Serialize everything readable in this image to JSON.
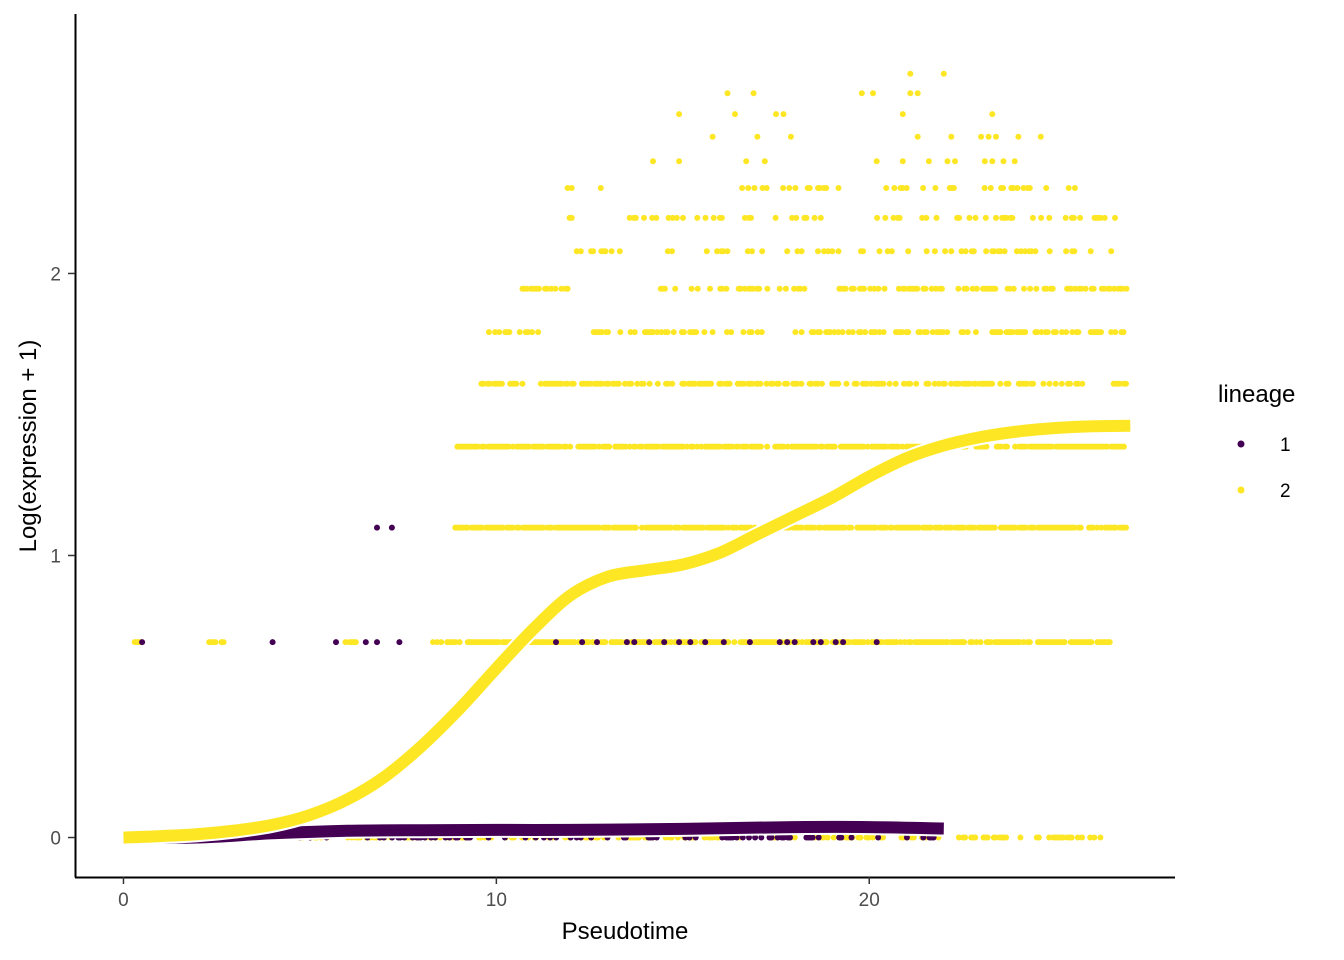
{
  "chart_data": {
    "type": "scatter",
    "title": "",
    "xlabel": "Pseudotime",
    "ylabel": "Log(expression + 1)",
    "xlim": [
      -1.3,
      28.2
    ],
    "ylim": [
      -0.14,
      2.92
    ],
    "x_ticks": [
      {
        "value": 0,
        "label": "0"
      },
      {
        "value": 10,
        "label": "10"
      },
      {
        "value": 20,
        "label": "20"
      }
    ],
    "y_ticks": [
      {
        "value": 0,
        "label": "0"
      },
      {
        "value": 1,
        "label": "1"
      },
      {
        "value": 2,
        "label": "2"
      }
    ],
    "grid": false,
    "legend": {
      "title": "lineage",
      "position": "right",
      "entries": [
        {
          "label": "1",
          "color": "#440154"
        },
        {
          "label": "2",
          "color": "#FDE725"
        }
      ]
    },
    "series": [
      {
        "name": "1",
        "color": "#440154",
        "point_groups": [
          {
            "y": 0.0,
            "x_ranges": [
              [
                0.0,
                22.0
              ]
            ],
            "density": 0.22
          },
          {
            "y": 0.693,
            "x": [
              0.5,
              4.0,
              5.7,
              6.5,
              6.8,
              7.4,
              11.6,
              12.3,
              12.7,
              13.5,
              13.7,
              14.1,
              14.5,
              14.9,
              15.2,
              15.6,
              16.1,
              16.8,
              17.6,
              17.8,
              18.0,
              18.5,
              18.7,
              19.1,
              19.3,
              20.2
            ]
          },
          {
            "y": 1.099,
            "x": [
              6.8,
              7.2
            ]
          }
        ],
        "fit": {
          "x": [
            0,
            2,
            4,
            6,
            8,
            10,
            12,
            14,
            16,
            18,
            20,
            22
          ],
          "y": [
            0.0,
            0.0,
            0.015,
            0.024,
            0.026,
            0.027,
            0.027,
            0.029,
            0.033,
            0.037,
            0.037,
            0.032
          ]
        }
      },
      {
        "name": "2",
        "color": "#FDE725",
        "point_groups": [
          {
            "y": 0.0,
            "x_ranges": [
              [
                2.0,
                26.2
              ]
            ],
            "density": 0.4
          },
          {
            "y": 0.693,
            "x_ranges": [
              [
                0.3,
                0.6
              ],
              [
                2.3,
                2.8
              ],
              [
                5.9,
                6.3
              ],
              [
                8.3,
                26.5
              ]
            ],
            "density": 0.78
          },
          {
            "y": 1.099,
            "x_ranges": [
              [
                8.9,
                26.9
              ]
            ],
            "density": 0.85
          },
          {
            "y": 1.386,
            "x_ranges": [
              [
                8.9,
                26.9
              ]
            ],
            "density": 0.8
          },
          {
            "y": 1.609,
            "x_ranges": [
              [
                9.6,
                25.8
              ],
              [
                26.5,
                26.9
              ]
            ],
            "density": 0.62
          },
          {
            "y": 1.792,
            "x_ranges": [
              [
                9.8,
                11.2
              ],
              [
                12.5,
                17.3
              ],
              [
                17.8,
                26.9
              ]
            ],
            "density": 0.44
          },
          {
            "y": 1.946,
            "x_ranges": [
              [
                10.7,
                12.0
              ],
              [
                14.3,
                18.3
              ],
              [
                19.2,
                26.9
              ]
            ],
            "density": 0.42
          },
          {
            "y": 2.079,
            "x_ranges": [
              [
                12.1,
                13.5
              ],
              [
                14.6,
                17.2
              ],
              [
                17.8,
                26.5
              ]
            ],
            "density": 0.33
          },
          {
            "y": 2.197,
            "x_ranges": [
              [
                11.8,
                12.2
              ],
              [
                13.3,
                16.1
              ],
              [
                16.5,
                19.2
              ],
              [
                20.1,
                26.9
              ]
            ],
            "density": 0.24
          },
          {
            "y": 2.303,
            "x_ranges": [
              [
                11.8,
                12.1
              ],
              [
                12.8,
                13.2
              ],
              [
                15.6,
                19.4
              ],
              [
                20.4,
                25.8
              ]
            ],
            "density": 0.22
          },
          {
            "y": 2.398,
            "x": [
              14.2,
              14.9,
              16.7,
              17.2,
              20.2,
              20.9,
              21.6,
              22.1,
              22.3,
              23.1,
              23.3,
              23.6,
              23.9
            ]
          },
          {
            "y": 2.485,
            "x": [
              15.8,
              17.0,
              17.9,
              21.3,
              22.2,
              23.0,
              23.2,
              23.4,
              24.0,
              24.6
            ]
          },
          {
            "y": 2.565,
            "x": [
              14.9,
              16.4,
              17.5,
              17.7,
              20.9,
              23.3
            ]
          },
          {
            "y": 2.639,
            "x": [
              16.2,
              16.9,
              19.8,
              20.1,
              21.1,
              21.3
            ]
          },
          {
            "y": 2.708,
            "x": [
              21.1,
              22.0
            ]
          }
        ],
        "fit": {
          "x": [
            0,
            1,
            2,
            3,
            4,
            5,
            6,
            7,
            8,
            9,
            10,
            11,
            12,
            13,
            14,
            15,
            16,
            17,
            18,
            19,
            20,
            21,
            22,
            23,
            24,
            25,
            26,
            27
          ],
          "y": [
            0.0,
            0.005,
            0.012,
            0.025,
            0.045,
            0.08,
            0.135,
            0.215,
            0.325,
            0.455,
            0.6,
            0.74,
            0.86,
            0.925,
            0.948,
            0.968,
            1.01,
            1.075,
            1.14,
            1.205,
            1.28,
            1.345,
            1.39,
            1.42,
            1.44,
            1.452,
            1.458,
            1.46
          ]
        }
      }
    ]
  }
}
